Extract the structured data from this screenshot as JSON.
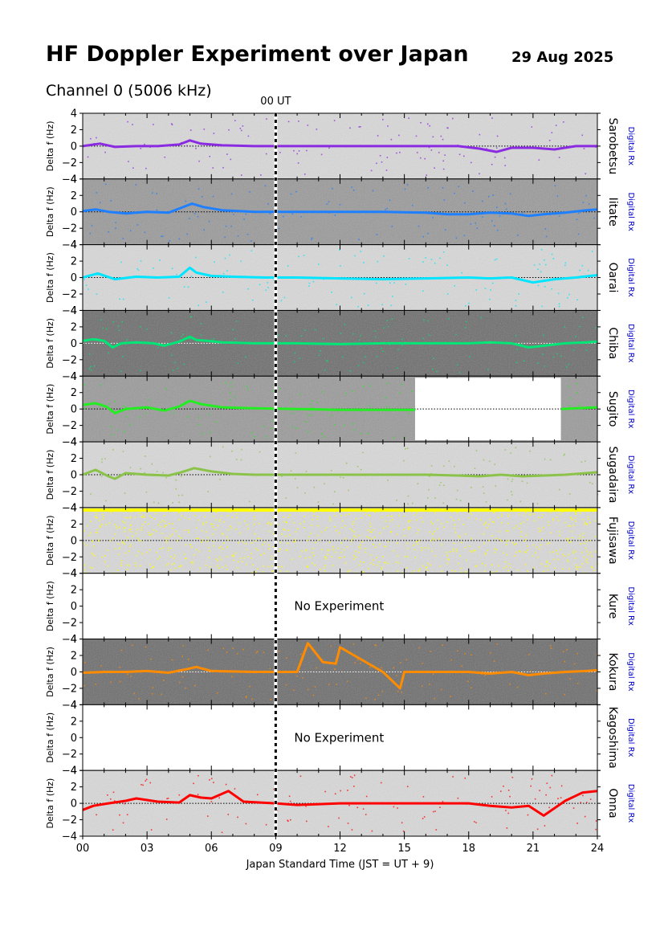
{
  "header": {
    "title": "HF Doppler Experiment over Japan",
    "date": "29 Aug 2025",
    "subtitle": "Channel 0 (5006 kHz)"
  },
  "chart_data": {
    "type": "scatter",
    "title": "HF Doppler Experiment over Japan",
    "subtitle": "Channel 0 (5006 kHz)",
    "xlabel": "Japan Standard Time (JST = UT + 9)",
    "ylabel": "Delta f (Hz)",
    "xlim": [
      0,
      24
    ],
    "ylim": [
      -4,
      4
    ],
    "x_ticks": [
      "00",
      "03",
      "06",
      "09",
      "12",
      "15",
      "18",
      "21",
      "24"
    ],
    "y_ticks": [
      "4",
      "2",
      "0",
      "−2",
      "−4"
    ],
    "marker_line": {
      "x": 9,
      "label": "00 UT"
    },
    "receiver_label": "Digital Rx",
    "no_experiment_text": "No Experiment",
    "series": [
      {
        "name": "Sarobetsu",
        "color": "#8a2be2",
        "bg": "light",
        "active": true,
        "trace_x": [
          0,
          0.8,
          1.5,
          2.5,
          3.5,
          4.5,
          5.0,
          5.5,
          6.5,
          8,
          10,
          12,
          14,
          16,
          17.5,
          18.5,
          19.3,
          20,
          21,
          22,
          23,
          24
        ],
        "trace_y": [
          0.0,
          0.3,
          -0.1,
          0.0,
          0.0,
          0.2,
          0.7,
          0.3,
          0.1,
          0.0,
          0.0,
          0.0,
          0.0,
          0.0,
          0.0,
          -0.3,
          -0.7,
          -0.2,
          -0.2,
          -0.4,
          0.0,
          0.0
        ]
      },
      {
        "name": "Iitate",
        "color": "#1e80ff",
        "bg": "mid",
        "active": true,
        "trace_x": [
          0,
          0.6,
          1.2,
          2,
          3,
          4,
          4.6,
          5.1,
          5.6,
          6.5,
          8,
          10,
          12,
          14,
          16,
          17,
          18,
          19,
          20,
          20.8,
          21.5,
          22.5,
          23.5,
          24
        ],
        "trace_y": [
          0.1,
          0.3,
          0.0,
          -0.2,
          0.0,
          -0.1,
          0.5,
          1.0,
          0.6,
          0.2,
          0.0,
          0.0,
          0.0,
          0.0,
          -0.1,
          -0.3,
          -0.3,
          -0.1,
          -0.2,
          -0.5,
          -0.3,
          -0.1,
          0.2,
          0.3
        ]
      },
      {
        "name": "Oarai",
        "color": "#00e5ff",
        "bg": "light",
        "active": true,
        "trace_x": [
          0,
          0.7,
          1.5,
          2.5,
          3.5,
          4.5,
          5.0,
          5.3,
          6,
          7,
          8.5,
          10,
          12,
          14,
          16,
          18,
          19,
          20,
          21,
          22,
          23,
          24
        ],
        "trace_y": [
          0.0,
          0.5,
          -0.2,
          0.1,
          0.0,
          0.1,
          1.2,
          0.6,
          0.2,
          0.1,
          0.0,
          0.0,
          -0.1,
          -0.2,
          -0.1,
          0.0,
          -0.1,
          0.0,
          -0.6,
          -0.2,
          0.0,
          0.3
        ]
      },
      {
        "name": "Chiba",
        "color": "#00e676",
        "bg": "dark",
        "active": true,
        "trace_x": [
          0,
          0.5,
          1.0,
          1.4,
          1.8,
          2.5,
          3.3,
          3.8,
          4.5,
          5.0,
          5.3,
          5.8,
          6.5,
          8,
          10,
          12,
          14,
          16,
          18,
          19,
          20,
          20.8,
          21.5,
          22.5,
          23.5,
          24
        ],
        "trace_y": [
          0.3,
          0.5,
          0.3,
          -0.5,
          0.0,
          0.1,
          0.0,
          -0.3,
          0.2,
          0.8,
          0.4,
          0.3,
          0.1,
          0.0,
          0.0,
          -0.1,
          0.0,
          0.0,
          0.0,
          0.1,
          0.0,
          -0.5,
          -0.3,
          0.0,
          0.1,
          0.2
        ]
      },
      {
        "name": "Sugito",
        "color": "#22ee22",
        "bg": "mid",
        "active": true,
        "gap": [
          15.5,
          22.3
        ],
        "trace_x": [
          0,
          0.6,
          1.1,
          1.5,
          2.0,
          3.0,
          3.8,
          4.5,
          5.0,
          5.5,
          6.5,
          8,
          10,
          12,
          14,
          15.5
        ],
        "trace_y": [
          0.5,
          0.7,
          0.3,
          -0.5,
          0.0,
          0.2,
          -0.2,
          0.3,
          1.0,
          0.6,
          0.2,
          0.1,
          0.0,
          -0.1,
          -0.1,
          -0.1
        ],
        "trace2_x": [
          22.3,
          23,
          24
        ],
        "trace2_y": [
          0.0,
          0.1,
          0.2
        ]
      },
      {
        "name": "Sugadaira",
        "color": "#8bc34a",
        "bg": "light",
        "active": true,
        "trace_x": [
          0,
          0.6,
          1.2,
          1.5,
          2.0,
          3.0,
          4.0,
          4.6,
          5.2,
          6.0,
          7.0,
          8,
          10,
          12,
          14,
          16,
          17.5,
          18.5,
          19.5,
          20.5,
          21.5,
          22.5,
          23.5,
          24
        ],
        "trace_y": [
          0.0,
          0.6,
          -0.2,
          -0.5,
          0.2,
          0.0,
          -0.1,
          0.3,
          0.8,
          0.4,
          0.1,
          0.0,
          0.0,
          0.0,
          0.0,
          0.0,
          -0.1,
          -0.2,
          0.0,
          -0.2,
          -0.1,
          0.0,
          0.2,
          0.3
        ]
      },
      {
        "name": "Fujisawa",
        "color": "#ffff00",
        "bg": "light",
        "active": true,
        "saturated": true,
        "trace_x": [
          0,
          24
        ],
        "trace_y": [
          3.7,
          3.7
        ]
      },
      {
        "name": "Kure",
        "color": "#000000",
        "bg": "none",
        "active": false
      },
      {
        "name": "Kokura",
        "color": "#ff8c00",
        "bg": "dark",
        "active": true,
        "trace_x": [
          0,
          1,
          2,
          3,
          4,
          4.8,
          5.3,
          6,
          8,
          10,
          10.5,
          11.2,
          11.8,
          12,
          14,
          14.8,
          15,
          16,
          18,
          19,
          20,
          20.8,
          21.5,
          22.5,
          23.5,
          24
        ],
        "trace_y": [
          -0.1,
          0.0,
          0.0,
          0.1,
          -0.1,
          0.3,
          0.6,
          0.1,
          0.0,
          0.0,
          3.5,
          1.2,
          1.0,
          3.0,
          0.0,
          -2.0,
          0.0,
          0.0,
          0.0,
          -0.2,
          0.0,
          -0.4,
          -0.2,
          0.0,
          0.1,
          0.2
        ]
      },
      {
        "name": "Kagoshima",
        "color": "#000000",
        "bg": "none",
        "active": false
      },
      {
        "name": "Onna",
        "color": "#ff0000",
        "bg": "light",
        "active": true,
        "trace_x": [
          0,
          0.5,
          1.2,
          2.0,
          2.5,
          3.5,
          4.5,
          5.0,
          5.5,
          6.0,
          6.8,
          7.5,
          9,
          10,
          12,
          14,
          16,
          18,
          19,
          20,
          20.8,
          21.5,
          22.5,
          23.3,
          24
        ],
        "trace_y": [
          -0.8,
          -0.3,
          0.0,
          0.3,
          0.6,
          0.2,
          0.1,
          1.0,
          0.7,
          0.6,
          1.5,
          0.2,
          0.0,
          -0.2,
          0.0,
          0.0,
          0.0,
          0.0,
          -0.3,
          -0.5,
          -0.3,
          -1.5,
          0.3,
          1.3,
          1.5
        ]
      }
    ]
  }
}
